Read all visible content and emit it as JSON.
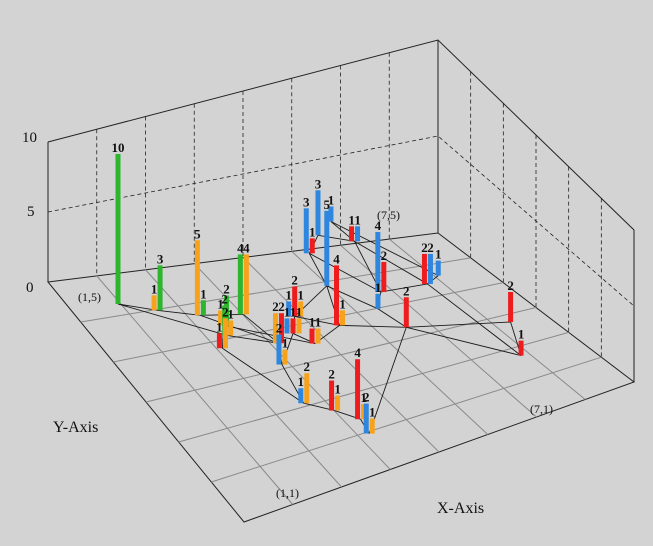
{
  "chart_data": {
    "type": "bar",
    "title": "",
    "xlabel": "X-Axis",
    "ylabel": "Y-Axis",
    "zlim": [
      0,
      10
    ],
    "z_ticks": [
      "0",
      "5",
      "10"
    ],
    "corner_labels": [
      "(1,5)",
      "(7,5)",
      "(1,1)",
      "(7,1)"
    ],
    "grid": true,
    "background_color": "#d3d3d3",
    "colors": {
      "red": "#ee1c1c",
      "orange": "#f7a21b",
      "green": "#2db52d",
      "blue": "#2e86de"
    },
    "bars": [
      {
        "x": 1.0,
        "y": 5.0,
        "values": {
          "green": 10
        }
      },
      {
        "x": 1.5,
        "y": 4.7,
        "values": {
          "orange": 1,
          "green": 3
        }
      },
      {
        "x": 2.1,
        "y": 4.4,
        "values": {
          "orange": 5,
          "green": 1
        }
      },
      {
        "x": 2.8,
        "y": 4.2,
        "values": {
          "green": 4,
          "orange": 4
        }
      },
      {
        "x": 2.2,
        "y": 3.9,
        "values": {
          "green": 2,
          "orange": 1
        }
      },
      {
        "x": 1.9,
        "y": 3.7,
        "values": {
          "red": 1,
          "orange": 2
        }
      },
      {
        "x": 2.3,
        "y": 4.1,
        "values": {
          "orange": 1,
          "green": 2
        }
      },
      {
        "x": 2.9,
        "y": 3.5,
        "values": {
          "orange": 2,
          "red": 2
        }
      },
      {
        "x": 2.6,
        "y": 3.1,
        "values": {
          "blue": 2,
          "orange": 1
        }
      },
      {
        "x": 3.3,
        "y": 3.6,
        "values": {
          "blue": 1,
          "red": 1,
          "orange": 1
        }
      },
      {
        "x": 3.6,
        "y": 3.9,
        "values": {
          "blue": 1,
          "red": 2,
          "orange": 1
        }
      },
      {
        "x": 3.5,
        "y": 3.3,
        "values": {
          "red": 1,
          "orange": 1
        }
      },
      {
        "x": 4.2,
        "y": 3.5,
        "values": {
          "red": 4,
          "orange": 1
        }
      },
      {
        "x": 2.3,
        "y": 2.3,
        "values": {
          "blue": 1,
          "orange": 2
        }
      },
      {
        "x": 2.7,
        "y": 2.0,
        "values": {
          "red": 2,
          "orange": 1
        }
      },
      {
        "x": 3.0,
        "y": 1.7,
        "values": {
          "red": 4,
          "orange": 1
        }
      },
      {
        "x": 2.9,
        "y": 1.4,
        "values": {
          "blue": 2,
          "orange": 1
        }
      },
      {
        "x": 4.6,
        "y": 4.3,
        "values": {
          "blue": 5
        }
      },
      {
        "x": 4.8,
        "y": 5.0,
        "values": {
          "blue": 3,
          "red": 1
        }
      },
      {
        "x": 5.2,
        "y": 5.3,
        "values": {
          "blue": 3
        }
      },
      {
        "x": 5.7,
        "y": 5.0,
        "values": {
          "red": 1,
          "blue": 1
        }
      },
      {
        "x": 5.6,
        "y": 5.5,
        "values": {
          "blue": 1
        }
      },
      {
        "x": 5.1,
        "y": 3.6,
        "values": {
          "blue": 1
        }
      },
      {
        "x": 5.4,
        "y": 3.9,
        "values": {
          "blue": 4,
          "red": 2
        }
      },
      {
        "x": 5.3,
        "y": 3.1,
        "values": {
          "red": 2
        }
      },
      {
        "x": 6.3,
        "y": 3.8,
        "values": {
          "red": 2,
          "blue": 2
        }
      },
      {
        "x": 6.6,
        "y": 3.9,
        "values": {
          "blue": 1
        }
      },
      {
        "x": 6.9,
        "y": 1.9,
        "values": {
          "red": 1
        }
      },
      {
        "x": 7.2,
        "y": 2.6,
        "values": {
          "red": 2
        }
      }
    ],
    "edges": [
      [
        1,
        2
      ],
      [
        2,
        3
      ],
      [
        3,
        4
      ],
      [
        1,
        5
      ],
      [
        5,
        6
      ],
      [
        6,
        7
      ],
      [
        5,
        8
      ],
      [
        4,
        8
      ],
      [
        8,
        9
      ],
      [
        9,
        10
      ],
      [
        10,
        11
      ],
      [
        10,
        12
      ],
      [
        12,
        13
      ],
      [
        11,
        13
      ],
      [
        9,
        14
      ],
      [
        6,
        14
      ],
      [
        14,
        15
      ],
      [
        15,
        16
      ],
      [
        16,
        17
      ],
      [
        13,
        18
      ],
      [
        18,
        19
      ],
      [
        19,
        20
      ],
      [
        20,
        21
      ],
      [
        21,
        22
      ],
      [
        18,
        23
      ],
      [
        23,
        24
      ],
      [
        24,
        21
      ],
      [
        23,
        25
      ],
      [
        13,
        25
      ],
      [
        24,
        26
      ],
      [
        26,
        27
      ],
      [
        26,
        28
      ],
      [
        28,
        29
      ],
      [
        25,
        28
      ],
      [
        22,
        27
      ],
      [
        11,
        18
      ],
      [
        19,
        24
      ],
      [
        26,
        21
      ],
      [
        25,
        29
      ],
      [
        17,
        25
      ],
      [
        7,
        12
      ],
      [
        3,
        8
      ]
    ]
  }
}
